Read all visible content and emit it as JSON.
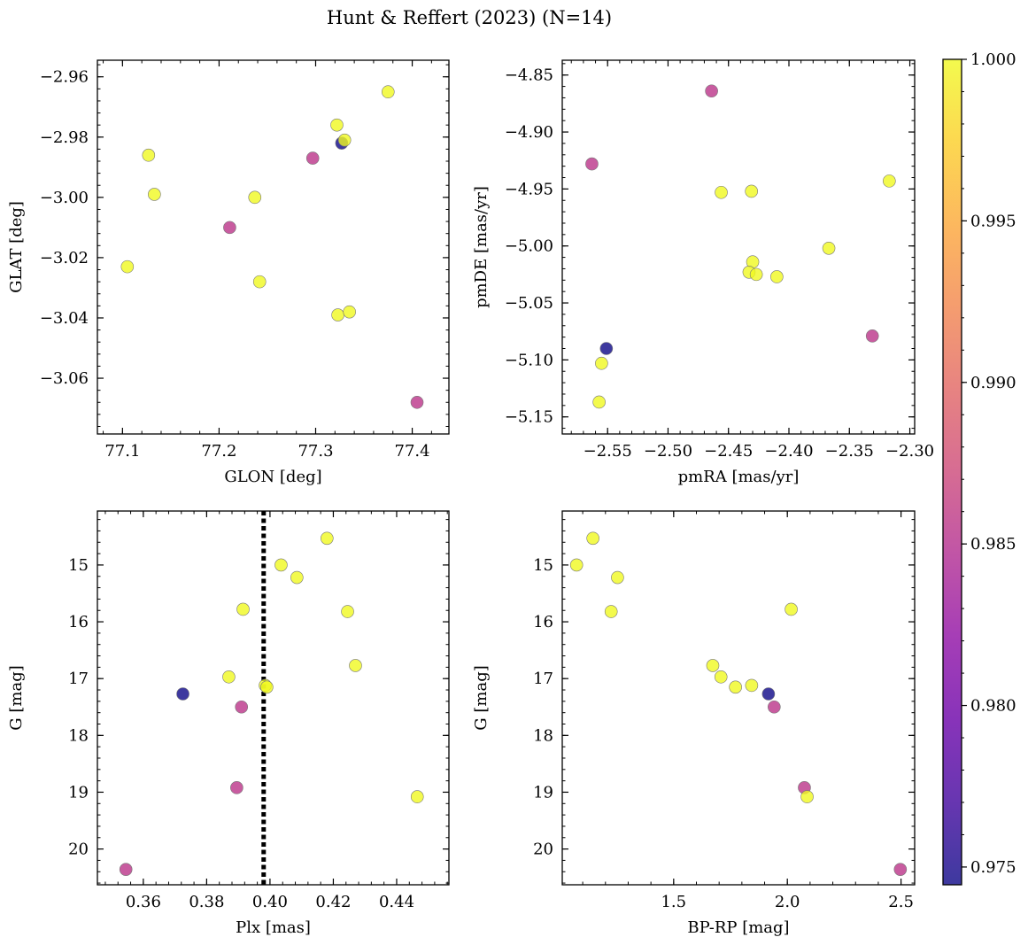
{
  "figure": {
    "title": "Hunt & Reffert (2023) (N=14)"
  },
  "colors": {
    "point_stroke": "#777777",
    "ref_line": "#000000",
    "frame": "#000000"
  },
  "colorbar": {
    "range": [
      0.97445,
      1.0
    ],
    "ticks": [
      0.975,
      0.98,
      0.985,
      0.99,
      0.995,
      1.0
    ],
    "tick_labels": [
      "0.975",
      "0.980",
      "0.985",
      "0.990",
      "0.995",
      "1.000"
    ],
    "colormap": "plasma"
  },
  "chart_data": [
    {
      "id": "sky",
      "type": "scatter",
      "title": "",
      "xlabel": "GLON [deg]",
      "ylabel": "GLAT [deg]",
      "xlim": [
        77.074,
        77.438
      ],
      "ylim": [
        -3.0785,
        -2.9545
      ],
      "y_inverted": false,
      "xticks": [
        77.1,
        77.2,
        77.3,
        77.4
      ],
      "xtick_labels": [
        "77.1",
        "77.2",
        "77.3",
        "77.4"
      ],
      "yticks": [
        -3.06,
        -3.04,
        -3.02,
        -3.0,
        -2.98,
        -2.96
      ],
      "ytick_labels": [
        "−3.06",
        "−3.04",
        "−3.02",
        "−3.00",
        "−2.98",
        "−2.96"
      ],
      "points": [
        {
          "x": 77.127,
          "y": -2.986,
          "c": 1.0
        },
        {
          "x": 77.133,
          "y": -2.999,
          "c": 1.0
        },
        {
          "x": 77.105,
          "y": -3.023,
          "c": 1.0
        },
        {
          "x": 77.211,
          "y": -3.01,
          "c": 0.9855
        },
        {
          "x": 77.237,
          "y": -3.0,
          "c": 1.0
        },
        {
          "x": 77.242,
          "y": -3.028,
          "c": 1.0
        },
        {
          "x": 77.297,
          "y": -2.987,
          "c": 0.9855
        },
        {
          "x": 77.322,
          "y": -2.976,
          "c": 1.0
        },
        {
          "x": 77.327,
          "y": -2.982,
          "c": 0.9745
        },
        {
          "x": 77.33,
          "y": -2.981,
          "c": 1.0
        },
        {
          "x": 77.375,
          "y": -2.965,
          "c": 1.0
        },
        {
          "x": 77.323,
          "y": -3.039,
          "c": 1.0
        },
        {
          "x": 77.335,
          "y": -3.038,
          "c": 1.0
        },
        {
          "x": 77.405,
          "y": -3.068,
          "c": 0.9855
        }
      ]
    },
    {
      "id": "pm",
      "type": "scatter",
      "title": "",
      "xlabel": "pmRA [mas/yr]",
      "ylabel": "pmDE [mas/yr]",
      "xlim": [
        -2.5875,
        -2.296
      ],
      "ylim": [
        -5.165,
        -4.837
      ],
      "y_inverted": false,
      "xticks": [
        -2.55,
        -2.5,
        -2.45,
        -2.4,
        -2.35,
        -2.3
      ],
      "xtick_labels": [
        "−2.55",
        "−2.50",
        "−2.45",
        "−2.40",
        "−2.35",
        "−2.30"
      ],
      "yticks": [
        -5.15,
        -5.1,
        -5.05,
        -5.0,
        -4.95,
        -4.9,
        -4.85
      ],
      "ytick_labels": [
        "−5.15",
        "−5.10",
        "−5.05",
        "−5.00",
        "−4.95",
        "−4.90",
        "−4.85"
      ],
      "points": [
        {
          "x": -2.563,
          "y": -4.928,
          "c": 0.9855
        },
        {
          "x": -2.464,
          "y": -4.864,
          "c": 0.9855
        },
        {
          "x": -2.456,
          "y": -4.953,
          "c": 1.0
        },
        {
          "x": -2.431,
          "y": -4.952,
          "c": 1.0
        },
        {
          "x": -2.317,
          "y": -4.943,
          "c": 1.0
        },
        {
          "x": -2.367,
          "y": -5.002,
          "c": 1.0
        },
        {
          "x": -2.43,
          "y": -5.014,
          "c": 1.0
        },
        {
          "x": -2.433,
          "y": -5.023,
          "c": 1.0
        },
        {
          "x": -2.427,
          "y": -5.025,
          "c": 1.0
        },
        {
          "x": -2.41,
          "y": -5.027,
          "c": 1.0
        },
        {
          "x": -2.331,
          "y": -5.079,
          "c": 0.9855
        },
        {
          "x": -2.551,
          "y": -5.09,
          "c": 0.9745
        },
        {
          "x": -2.555,
          "y": -5.103,
          "c": 1.0
        },
        {
          "x": -2.557,
          "y": -5.137,
          "c": 1.0
        }
      ]
    },
    {
      "id": "plx",
      "type": "scatter",
      "title": "",
      "xlabel": "Plx [mas]",
      "ylabel": "G [mag]",
      "xlim": [
        0.3455,
        0.4565
      ],
      "ylim": [
        14.05,
        20.63
      ],
      "y_inverted": true,
      "xticks": [
        0.36,
        0.38,
        0.4,
        0.42,
        0.44
      ],
      "xtick_labels": [
        "0.36",
        "0.38",
        "0.40",
        "0.42",
        "0.44"
      ],
      "yticks": [
        15,
        16,
        17,
        18,
        19,
        20
      ],
      "ytick_labels": [
        "15",
        "16",
        "17",
        "18",
        "19",
        "20"
      ],
      "ref_line_x": 0.398,
      "points": [
        {
          "x": 0.418,
          "y": 14.53,
          "c": 1.0
        },
        {
          "x": 0.4035,
          "y": 15.0,
          "c": 1.0
        },
        {
          "x": 0.4085,
          "y": 15.22,
          "c": 1.0
        },
        {
          "x": 0.3915,
          "y": 15.78,
          "c": 1.0
        },
        {
          "x": 0.4245,
          "y": 15.82,
          "c": 1.0
        },
        {
          "x": 0.427,
          "y": 16.77,
          "c": 1.0
        },
        {
          "x": 0.387,
          "y": 16.97,
          "c": 1.0
        },
        {
          "x": 0.3985,
          "y": 17.12,
          "c": 1.0
        },
        {
          "x": 0.399,
          "y": 17.15,
          "c": 1.0
        },
        {
          "x": 0.3725,
          "y": 17.27,
          "c": 0.9745
        },
        {
          "x": 0.391,
          "y": 17.5,
          "c": 0.9855
        },
        {
          "x": 0.3895,
          "y": 18.92,
          "c": 0.9855
        },
        {
          "x": 0.4465,
          "y": 19.08,
          "c": 1.0
        },
        {
          "x": 0.3545,
          "y": 20.36,
          "c": 0.9855
        }
      ]
    },
    {
      "id": "cmd",
      "type": "scatter",
      "title": "",
      "xlabel": "BP-RP [mag]",
      "ylabel": "G [mag]",
      "xlim": [
        1.01,
        2.56
      ],
      "ylim": [
        14.05,
        20.63
      ],
      "y_inverted": true,
      "xticks": [
        1.5,
        2.0,
        2.5
      ],
      "xtick_labels": [
        "1.5",
        "2.0",
        "2.5"
      ],
      "yticks": [
        15,
        16,
        17,
        18,
        19,
        20
      ],
      "ytick_labels": [
        "15",
        "16",
        "17",
        "18",
        "19",
        "20"
      ],
      "points": [
        {
          "x": 1.145,
          "y": 14.53,
          "c": 1.0
        },
        {
          "x": 1.073,
          "y": 15.0,
          "c": 1.0
        },
        {
          "x": 1.253,
          "y": 15.22,
          "c": 1.0
        },
        {
          "x": 2.017,
          "y": 15.78,
          "c": 1.0
        },
        {
          "x": 1.225,
          "y": 15.82,
          "c": 1.0
        },
        {
          "x": 1.672,
          "y": 16.77,
          "c": 1.0
        },
        {
          "x": 1.708,
          "y": 16.97,
          "c": 1.0
        },
        {
          "x": 1.843,
          "y": 17.12,
          "c": 1.0
        },
        {
          "x": 1.772,
          "y": 17.15,
          "c": 1.0
        },
        {
          "x": 1.917,
          "y": 17.27,
          "c": 0.9745
        },
        {
          "x": 1.942,
          "y": 17.5,
          "c": 0.9855
        },
        {
          "x": 2.075,
          "y": 18.92,
          "c": 0.9855
        },
        {
          "x": 2.087,
          "y": 19.08,
          "c": 1.0
        },
        {
          "x": 2.497,
          "y": 20.36,
          "c": 0.9855
        }
      ]
    }
  ]
}
